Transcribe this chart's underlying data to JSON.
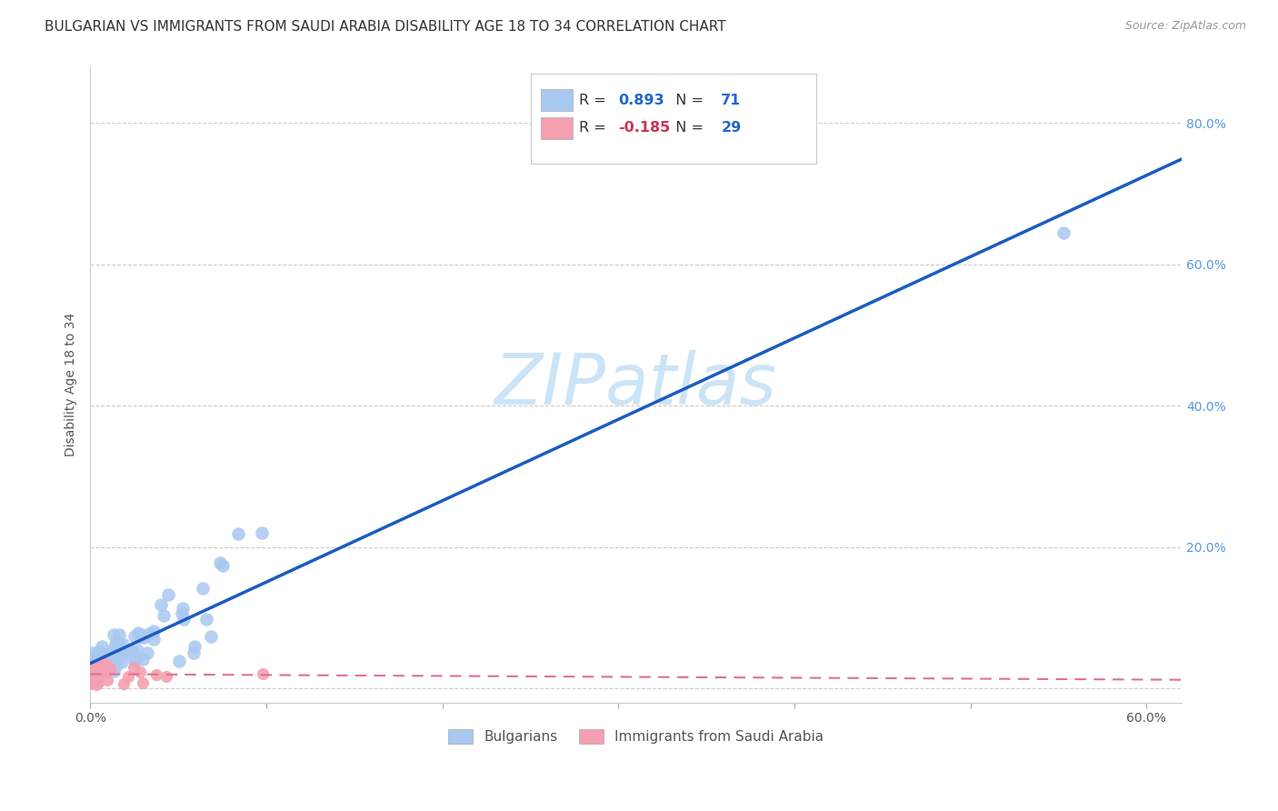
{
  "title": "BULGARIAN VS IMMIGRANTS FROM SAUDI ARABIA DISABILITY AGE 18 TO 34 CORRELATION CHART",
  "source": "Source: ZipAtlas.com",
  "ylabel": "Disability Age 18 to 34",
  "xlim": [
    0.0,
    0.62
  ],
  "ylim": [
    -0.02,
    0.88
  ],
  "xticks": [
    0.0,
    0.1,
    0.2,
    0.3,
    0.4,
    0.5,
    0.6
  ],
  "yticks": [
    0.0,
    0.2,
    0.4,
    0.6,
    0.8
  ],
  "r_blue": 0.893,
  "n_blue": 71,
  "r_pink": -0.185,
  "n_pink": 29,
  "blue_color": "#a8c8f0",
  "pink_color": "#f4a0b0",
  "blue_line_color": "#1a5cbf",
  "pink_line_color": "#e07090",
  "watermark_color": "#cce4f7",
  "background_color": "#ffffff",
  "grid_color": "#cccccc",
  "title_fontsize": 11,
  "tick_color": "#5599dd",
  "legend_r_blue": "0.893",
  "legend_r_pink": "-0.185",
  "legend_n_blue": "71",
  "legend_n_pink": "29"
}
